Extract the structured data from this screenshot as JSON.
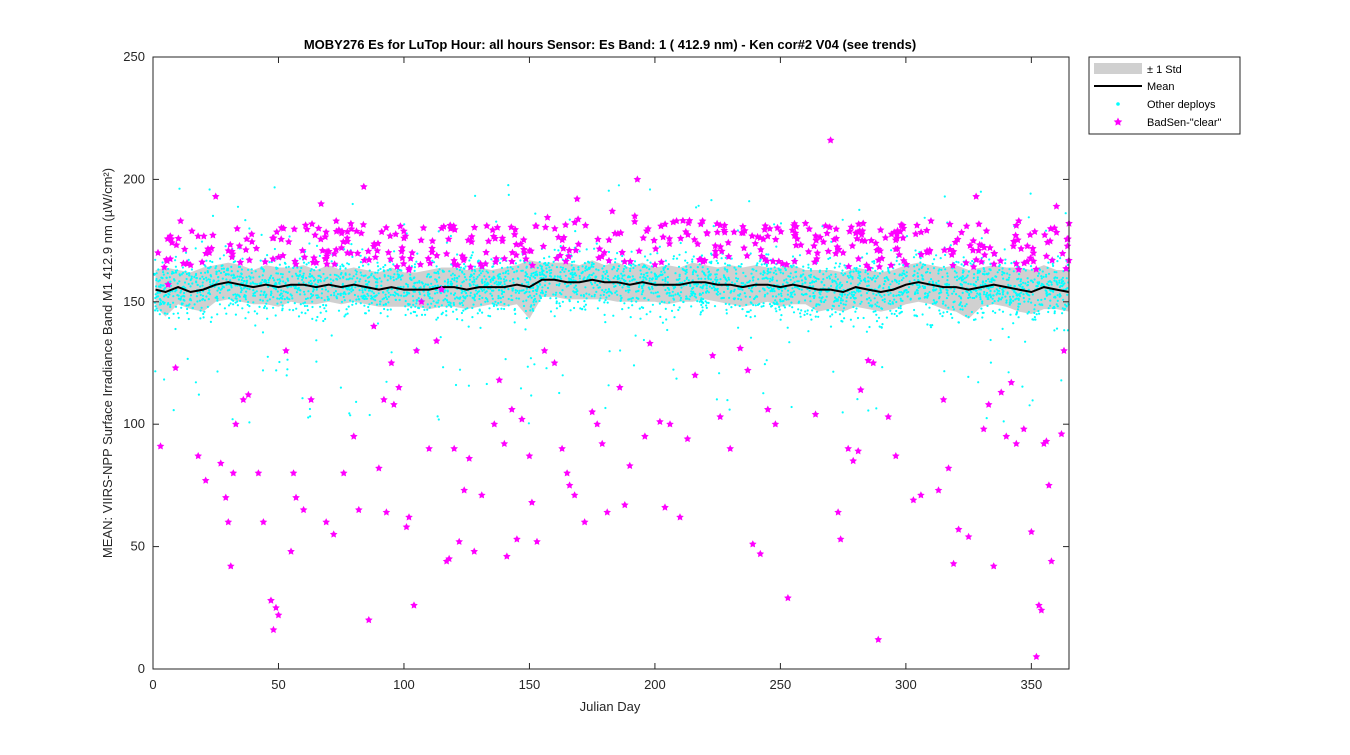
{
  "chart_data": {
    "type": "scatter",
    "title": "MOBY276   Es for LuTop  Hour: all hours  Sensor: Es Band: 1 ( 412.9 nm)   - Ken cor#2 V04 (see trends)",
    "xlabel": "Julian Day",
    "ylabel": "MEAN: VIIRS-NPP Surface Irradiance Band M1 412.9 nm (µW/cm²)",
    "xlim": [
      0,
      365
    ],
    "ylim": [
      0,
      250
    ],
    "xticks": [
      0,
      50,
      100,
      150,
      200,
      250,
      300,
      350
    ],
    "yticks": [
      0,
      50,
      100,
      150,
      200,
      250
    ],
    "xtick_labels": [
      "0",
      "50",
      "100",
      "150",
      "200",
      "250",
      "300",
      "350"
    ],
    "ytick_labels": [
      "0",
      "50",
      "100",
      "150",
      "200",
      "250"
    ],
    "grid": false,
    "legend_position": "outside-top-right",
    "legend": [
      {
        "label": "± 1 Std",
        "kind": "band",
        "color": "#d0d0d0"
      },
      {
        "label": "Mean",
        "kind": "line",
        "color": "#000000"
      },
      {
        "label": "Other deploys",
        "kind": "dot",
        "color": "#00ffff"
      },
      {
        "label": "BadSen-\"clear\"",
        "kind": "star",
        "color": "#ff00ff"
      }
    ],
    "series": [
      {
        "name": "Mean",
        "x": [
          1,
          5,
          10,
          15,
          20,
          25,
          30,
          35,
          40,
          45,
          50,
          55,
          60,
          65,
          70,
          75,
          80,
          85,
          90,
          95,
          100,
          105,
          110,
          115,
          120,
          125,
          130,
          135,
          140,
          145,
          150,
          155,
          160,
          165,
          170,
          175,
          180,
          185,
          190,
          195,
          200,
          205,
          210,
          215,
          220,
          225,
          230,
          235,
          240,
          245,
          250,
          255,
          260,
          265,
          270,
          275,
          280,
          285,
          290,
          295,
          300,
          305,
          310,
          315,
          320,
          325,
          330,
          335,
          340,
          345,
          350,
          355,
          360,
          365
        ],
        "y": [
          155,
          154,
          156,
          154,
          155,
          157,
          158,
          157,
          156,
          157,
          156,
          157,
          157,
          156,
          157,
          156,
          157,
          156,
          155,
          156,
          155,
          155,
          155,
          156,
          156,
          155,
          156,
          156,
          156,
          157,
          156,
          159,
          159,
          158,
          158,
          159,
          158,
          158,
          157,
          158,
          157,
          157,
          157,
          158,
          158,
          157,
          157,
          156,
          157,
          157,
          156,
          157,
          156,
          155,
          155,
          154,
          156,
          155,
          154,
          155,
          157,
          158,
          157,
          156,
          156,
          155,
          156,
          157,
          156,
          155,
          154,
          156,
          155,
          154
        ]
      },
      {
        "name": "± 1 Std",
        "x": [
          1,
          5,
          10,
          15,
          20,
          25,
          30,
          35,
          40,
          45,
          50,
          55,
          60,
          65,
          70,
          75,
          80,
          85,
          90,
          95,
          100,
          105,
          110,
          115,
          120,
          125,
          130,
          135,
          140,
          145,
          150,
          155,
          160,
          165,
          170,
          175,
          180,
          185,
          190,
          195,
          200,
          205,
          210,
          215,
          220,
          225,
          230,
          235,
          240,
          245,
          250,
          255,
          260,
          265,
          270,
          275,
          280,
          285,
          290,
          295,
          300,
          305,
          310,
          315,
          320,
          325,
          330,
          335,
          340,
          345,
          350,
          355,
          360,
          365
        ],
        "upper": [
          163,
          164,
          163,
          162,
          164,
          165,
          166,
          165,
          163,
          165,
          164,
          164,
          165,
          163,
          165,
          163,
          164,
          163,
          162,
          164,
          162,
          162,
          163,
          164,
          164,
          163,
          164,
          163,
          164,
          165,
          167,
          166,
          166,
          166,
          165,
          167,
          165,
          166,
          164,
          166,
          164,
          165,
          164,
          166,
          165,
          164,
          165,
          164,
          165,
          164,
          164,
          165,
          163,
          163,
          163,
          162,
          164,
          163,
          162,
          163,
          165,
          166,
          165,
          164,
          165,
          163,
          164,
          165,
          164,
          164,
          163,
          165,
          163,
          163
        ],
        "lower": [
          148,
          144,
          149,
          147,
          146,
          150,
          151,
          150,
          149,
          149,
          148,
          150,
          149,
          149,
          150,
          149,
          150,
          149,
          148,
          148,
          148,
          148,
          147,
          148,
          148,
          147,
          148,
          149,
          148,
          149,
          143,
          152,
          152,
          151,
          151,
          151,
          151,
          150,
          150,
          150,
          150,
          149,
          150,
          150,
          151,
          150,
          149,
          148,
          149,
          150,
          148,
          149,
          149,
          146,
          147,
          146,
          148,
          147,
          146,
          147,
          149,
          150,
          149,
          147,
          146,
          143,
          148,
          149,
          148,
          146,
          145,
          147,
          147,
          146
        ]
      },
      {
        "name": "BadSen-\"clear\"",
        "x": [
          2,
          3,
          6,
          9,
          11,
          15,
          18,
          21,
          25,
          27,
          29,
          30,
          31,
          32,
          33,
          36,
          38,
          42,
          44,
          47,
          48,
          49,
          50,
          52,
          53,
          55,
          56,
          57,
          60,
          63,
          66,
          67,
          69,
          72,
          73,
          76,
          80,
          82,
          83,
          84,
          86,
          88,
          90,
          92,
          93,
          95,
          96,
          98,
          100,
          101,
          102,
          104,
          105,
          107,
          110,
          113,
          115,
          117,
          118,
          120,
          122,
          124,
          126,
          128,
          131,
          133,
          136,
          138,
          140,
          141,
          143,
          145,
          147,
          148,
          150,
          151,
          153,
          156,
          160,
          163,
          165,
          166,
          168,
          169,
          172,
          175,
          177,
          179,
          181,
          183,
          186,
          188,
          190,
          192,
          193,
          196,
          198,
          202,
          204,
          206,
          210,
          213,
          216,
          219,
          223,
          226,
          230,
          234,
          237,
          239,
          242,
          245,
          248,
          253,
          256,
          260,
          264,
          268,
          270,
          273,
          274,
          275,
          277,
          279,
          281,
          282,
          283,
          285,
          287,
          289,
          293,
          296,
          299,
          303,
          306,
          310,
          313,
          315,
          317,
          319,
          321,
          325,
          328,
          331,
          333,
          335,
          338,
          340,
          342,
          344,
          345,
          347,
          350,
          352,
          353,
          354,
          355,
          356,
          357,
          358,
          360,
          362,
          363,
          365
        ],
        "y": [
          170,
          91,
          157,
          123,
          183,
          165,
          87,
          77,
          193,
          84,
          70,
          60,
          42,
          80,
          100,
          110,
          112,
          80,
          60,
          28,
          16,
          25,
          22,
          180,
          130,
          48,
          80,
          70,
          65,
          110,
          180,
          190,
          60,
          55,
          183,
          80,
          95,
          65,
          178,
          197,
          20,
          140,
          82,
          110,
          64,
          125,
          108,
          115,
          176,
          58,
          62,
          26,
          130,
          150,
          90,
          134,
          155,
          44,
          45,
          90,
          52,
          73,
          86,
          48,
          71,
          181,
          100,
          118,
          92,
          46,
          106,
          53,
          102,
          170,
          87,
          68,
          52,
          130,
          125,
          90,
          80,
          75,
          71,
          192,
          60,
          105,
          100,
          92,
          64,
          187,
          115,
          67,
          83,
          185,
          200,
          95,
          133,
          101,
          66,
          100,
          62,
          94,
          120,
          183,
          128,
          103,
          90,
          131,
          122,
          51,
          47,
          106,
          100,
          29,
          178,
          182,
          104,
          181,
          216,
          64,
          53,
          170,
          90,
          85,
          89,
          114,
          182,
          126,
          125,
          12,
          103,
          87,
          180,
          69,
          71,
          183,
          73,
          110,
          82,
          43,
          57,
          54,
          193,
          98,
          108,
          42,
          113,
          95,
          117,
          92,
          183,
          98,
          56,
          5,
          26,
          24,
          92,
          93,
          75,
          44,
          189,
          96,
          130,
          182
        ]
      },
      {
        "name": "Other deploys",
        "x_range": [
          0,
          365
        ],
        "y_typical_range": [
          140,
          175
        ],
        "y_sparse_range": [
          100,
          198
        ]
      }
    ]
  }
}
